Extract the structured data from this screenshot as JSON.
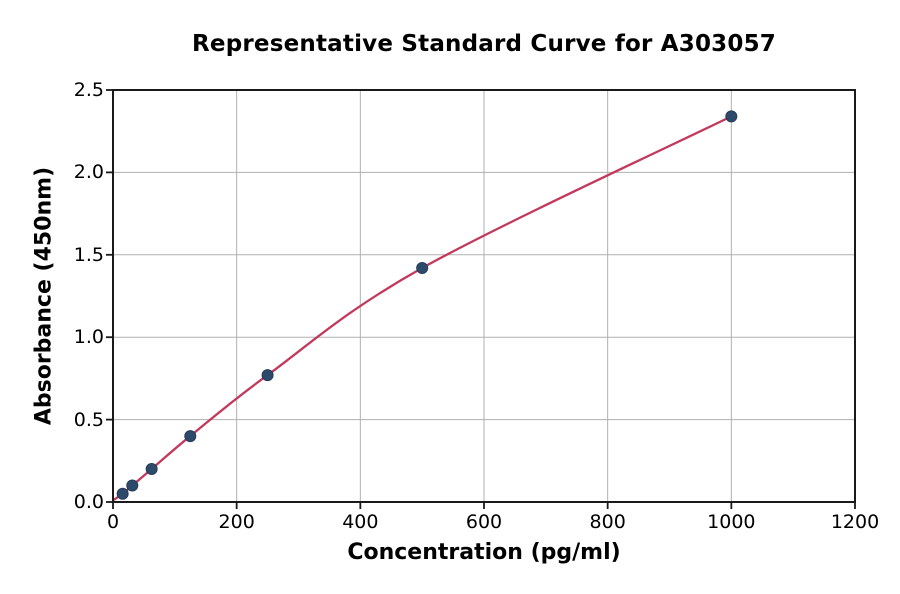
{
  "chart_data": {
    "type": "scatter",
    "title": "Representative Standard Curve for A303057",
    "xlabel": "Concentration (pg/ml)",
    "ylabel": "Absorbance (450nm)",
    "xlim": [
      0,
      1200
    ],
    "ylim": [
      0,
      2.5
    ],
    "x_ticks": [
      "0",
      "200",
      "400",
      "600",
      "800",
      "1000",
      "1200"
    ],
    "y_ticks": [
      "0.0",
      "0.5",
      "1.0",
      "1.5",
      "2.0",
      "2.5"
    ],
    "grid": true,
    "legend": "none",
    "points": [
      {
        "x": 15.6,
        "y": 0.05
      },
      {
        "x": 31.2,
        "y": 0.1
      },
      {
        "x": 62.5,
        "y": 0.2
      },
      {
        "x": 125,
        "y": 0.4
      },
      {
        "x": 250,
        "y": 0.77
      },
      {
        "x": 500,
        "y": 1.42
      },
      {
        "x": 1000,
        "y": 2.34
      }
    ],
    "curve_start": {
      "x": 0,
      "y": 0.01
    },
    "colors": {
      "curve": "#c2395c",
      "marker": "#2e4a6b",
      "marker_edge": "#243c59",
      "grid": "#b0b0b0",
      "spine": "#1a1a1a",
      "text": "#000000"
    }
  }
}
